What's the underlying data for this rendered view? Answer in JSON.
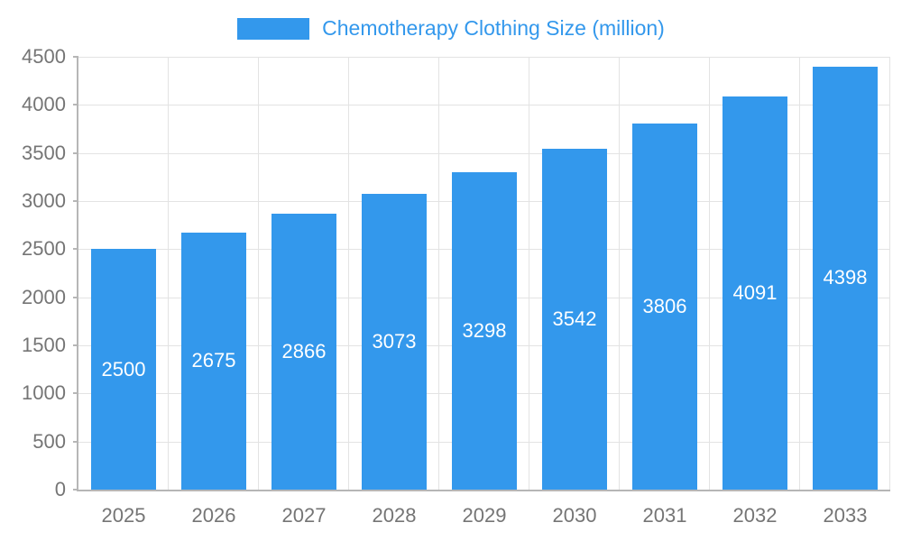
{
  "legend": {
    "label": "Chemotherapy Clothing Size (million)"
  },
  "colors": {
    "bar": "#3398ec",
    "legend_text": "#3398ec",
    "axis_tick_text": "#757575",
    "grid": "#e3e3e3",
    "axis_line": "#b6b6b6",
    "value_label_text": "#ffffff"
  },
  "chart_data": {
    "type": "bar",
    "title": "Chemotherapy Clothing Size (million)",
    "categories": [
      "2025",
      "2026",
      "2027",
      "2028",
      "2029",
      "2030",
      "2031",
      "2032",
      "2033"
    ],
    "values": [
      2500,
      2675,
      2866,
      3073,
      3298,
      3542,
      3806,
      4091,
      4398
    ],
    "value_labels": [
      "2500",
      "2675",
      "2866",
      "3073",
      "3298",
      "3542",
      "3806",
      "4091",
      "4398"
    ],
    "xlabel": "",
    "ylabel": "",
    "ylim": [
      0,
      4500
    ],
    "ytick_step": 500,
    "yticks": [
      "0",
      "500",
      "1000",
      "1500",
      "2000",
      "2500",
      "3000",
      "3500",
      "4000",
      "4500"
    ],
    "grid": true,
    "legend_position": "top"
  }
}
